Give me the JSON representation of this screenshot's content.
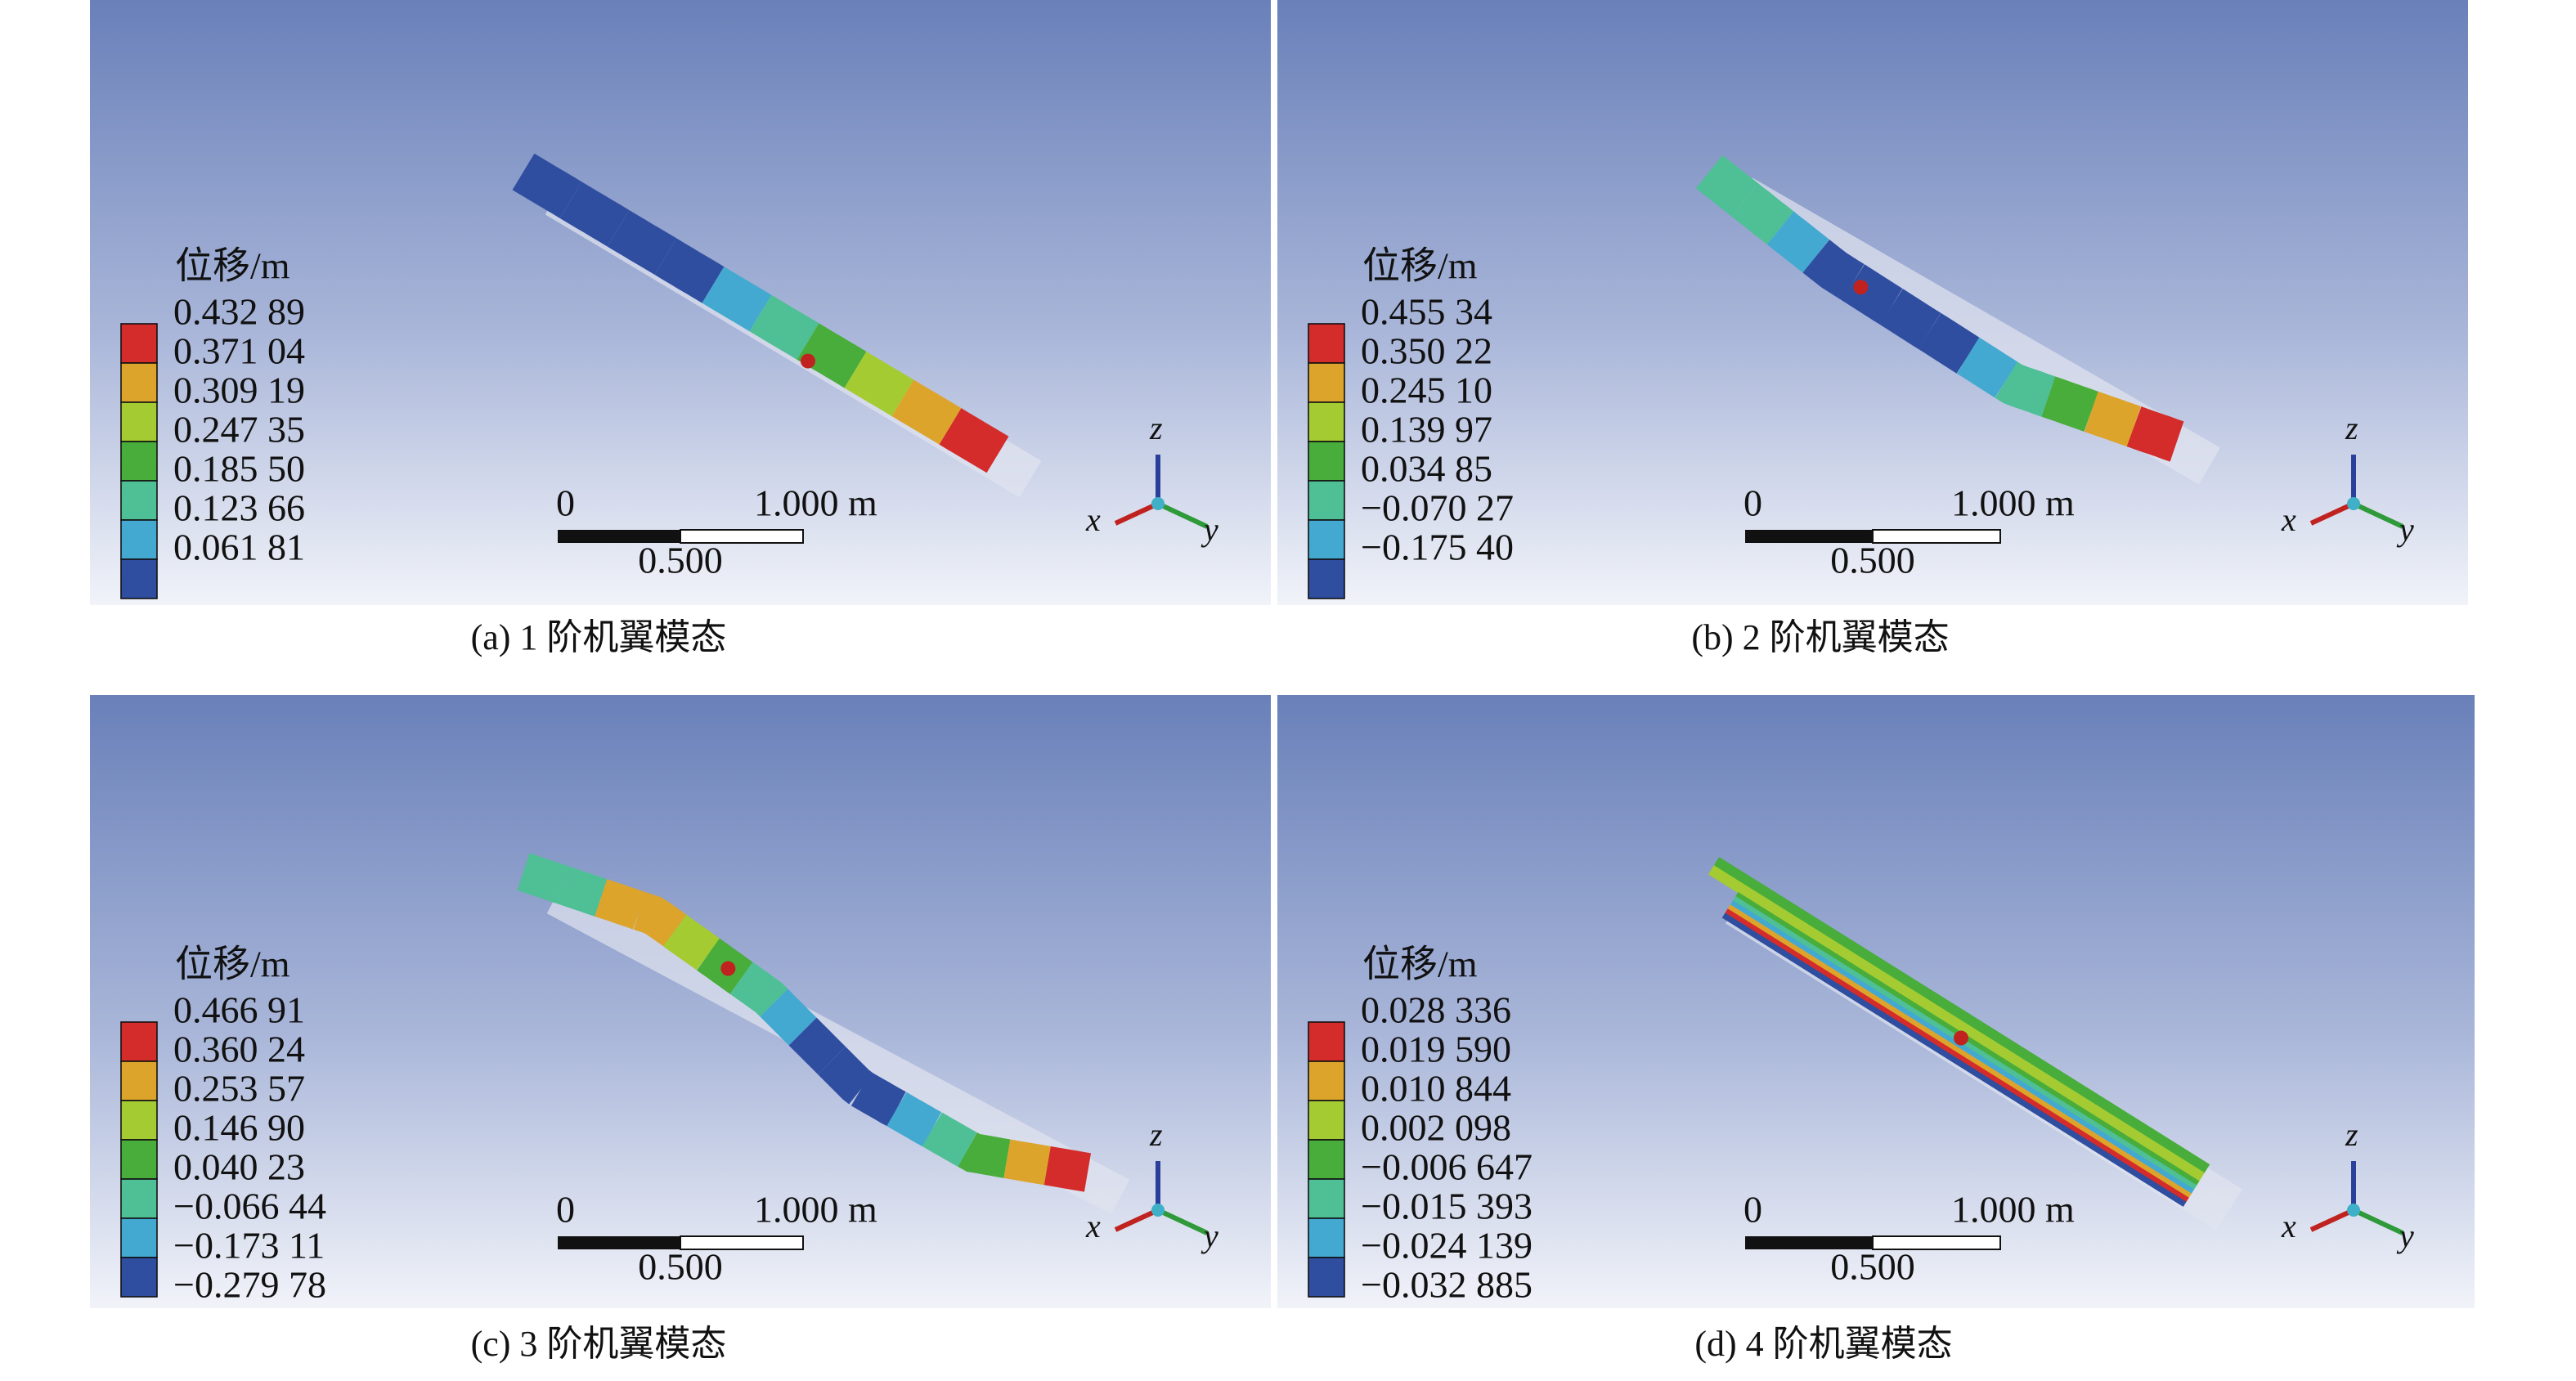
{
  "panels": [
    {
      "caption": "(a) 1 阶机翼模态",
      "legend_title": "位移/m",
      "legend_values": [
        "0.432 89",
        "0.371 04",
        "0.309 19",
        "0.247 35",
        "0.185 50",
        "0.123 66",
        "0.061 81"
      ],
      "scale_start": "0",
      "scale_end": "1.000 m",
      "scale_mid": "0.500",
      "axis_z": "z",
      "axis_x": "x",
      "axis_y": "y"
    },
    {
      "caption": "(b) 2 阶机翼模态",
      "legend_title": "位移/m",
      "legend_values": [
        "0.455 34",
        "0.350 22",
        "0.245 10",
        "0.139 97",
        "0.034 85",
        "−0.070 27",
        "−0.175 40"
      ],
      "scale_start": "0",
      "scale_end": "1.000 m",
      "scale_mid": "0.500",
      "axis_z": "z",
      "axis_x": "x",
      "axis_y": "y"
    },
    {
      "caption": "(c) 3 阶机翼模态",
      "legend_title": "位移/m",
      "legend_values": [
        "0.466 91",
        "0.360 24",
        "0.253 57",
        "0.146 90",
        "0.040 23",
        "−0.066 44",
        "−0.173 11",
        "−0.279 78"
      ],
      "scale_start": "0",
      "scale_end": "1.000 m",
      "scale_mid": "0.500",
      "axis_z": "z",
      "axis_x": "x",
      "axis_y": "y"
    },
    {
      "caption": "(d) 4 阶机翼模态",
      "legend_title": "位移/m",
      "legend_values": [
        "0.028 336",
        "0.019 590",
        "0.010 844",
        "0.002 098",
        "−0.006 647",
        "−0.015 393",
        "−0.024 139",
        "−0.032 885"
      ],
      "scale_start": "0",
      "scale_end": "1.000 m",
      "scale_mid": "0.500",
      "axis_z": "z",
      "axis_x": "x",
      "axis_y": "y"
    }
  ]
}
